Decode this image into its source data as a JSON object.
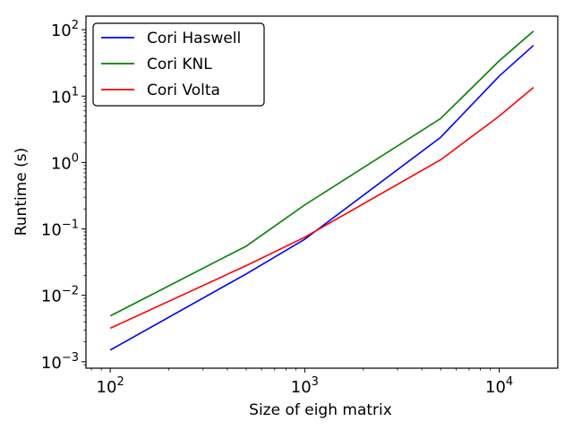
{
  "chart_data": {
    "type": "line",
    "title": "",
    "xlabel": "Size of eigh matrix",
    "ylabel": "Runtime (s)",
    "xscale": "log",
    "yscale": "log",
    "xlim": [
      75,
      20000
    ],
    "ylim": [
      0.0008,
      160
    ],
    "x_ticks": [
      {
        "value": 100,
        "base": "10",
        "exp": "2"
      },
      {
        "value": 1000,
        "base": "10",
        "exp": "3"
      },
      {
        "value": 10000,
        "base": "10",
        "exp": "4"
      }
    ],
    "y_ticks": [
      {
        "value": 0.001,
        "base": "10",
        "exp": "−3"
      },
      {
        "value": 0.01,
        "base": "10",
        "exp": "−2"
      },
      {
        "value": 0.1,
        "base": "10",
        "exp": "−1"
      },
      {
        "value": 1,
        "base": "10",
        "exp": "0"
      },
      {
        "value": 10,
        "base": "10",
        "exp": "1"
      },
      {
        "value": 100,
        "base": "10",
        "exp": "2"
      }
    ],
    "grid": false,
    "legend_position": "top-left",
    "x": [
      100,
      500,
      1000,
      5000,
      10000,
      15000
    ],
    "series": [
      {
        "name": "Cori Haswell",
        "color": "#0000ff",
        "values": [
          0.0015,
          0.021,
          0.07,
          2.4,
          20,
          58
        ]
      },
      {
        "name": "Cori KNL",
        "color": "#008000",
        "values": [
          0.0049,
          0.055,
          0.23,
          4.6,
          34,
          95
        ]
      },
      {
        "name": "Cori Volta",
        "color": "#ff0000",
        "values": [
          0.0032,
          0.028,
          0.075,
          1.1,
          5,
          13.5
        ]
      }
    ]
  }
}
